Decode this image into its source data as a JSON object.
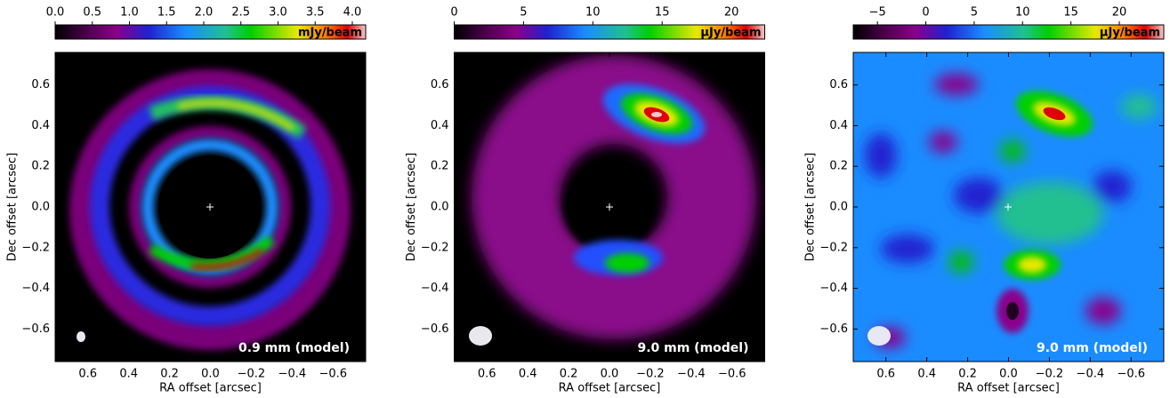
{
  "chart_data": [
    {
      "type": "image",
      "xlabel": "RA offset [arcsec]",
      "ylabel": "Dec offset [arcsec]",
      "annotation": "0.9 mm (model)",
      "xlim": [
        0.76,
        -0.76
      ],
      "ylim": [
        -0.76,
        0.76
      ],
      "xticks": [
        0.6,
        0.4,
        0.2,
        {
          "value": 0,
          "label": "0.0"
        },
        {
          "value": -0.2,
          "label": "−0.2"
        },
        {
          "value": -0.4,
          "label": "−0.4"
        },
        {
          "value": -0.6,
          "label": "−0.6"
        }
      ],
      "yticks": [
        {
          "value": -0.6,
          "label": "−0.6"
        },
        {
          "value": -0.4,
          "label": "−0.4"
        },
        {
          "value": -0.2,
          "label": "−0.2"
        },
        {
          "value": 0,
          "label": "0.0"
        },
        0.2,
        0.4,
        0.6
      ],
      "colorbar": {
        "label": "mJy/beam",
        "clim": [
          0,
          4.18
        ],
        "ticks": [
          {
            "value": 0,
            "label": "0.0"
          },
          0.5,
          {
            "value": 1,
            "label": "1.0"
          },
          1.5,
          {
            "value": 2,
            "label": "2.0"
          },
          2.5,
          {
            "value": 3,
            "label": "3.0"
          },
          3.5,
          {
            "value": 4,
            "label": "4.0"
          }
        ]
      }
    },
    {
      "type": "image",
      "xlabel": "RA offset [arcsec]",
      "ylabel": "Dec offset [arcsec]",
      "annotation": "9.0 mm (model)",
      "xlim": [
        0.76,
        -0.76
      ],
      "ylim": [
        -0.76,
        0.76
      ],
      "xticks": [
        0.6,
        0.4,
        0.2,
        {
          "value": 0,
          "label": "0.0"
        },
        {
          "value": -0.2,
          "label": "−0.2"
        },
        {
          "value": -0.4,
          "label": "−0.4"
        },
        {
          "value": -0.6,
          "label": "−0.6"
        }
      ],
      "yticks": [
        {
          "value": -0.6,
          "label": "−0.6"
        },
        {
          "value": -0.4,
          "label": "−0.4"
        },
        {
          "value": -0.2,
          "label": "−0.2"
        },
        {
          "value": 0,
          "label": "0.0"
        },
        0.2,
        0.4,
        0.6
      ],
      "colorbar": {
        "label": "μJy/beam",
        "clim": [
          0,
          22.4
        ],
        "ticks": [
          0,
          5,
          10,
          15,
          20
        ]
      }
    },
    {
      "type": "image",
      "xlabel": "RA offset [arcsec]",
      "ylabel": "Dec offset [arcsec]",
      "annotation": "9.0 mm (model)",
      "xlim": [
        0.76,
        -0.76
      ],
      "ylim": [
        -0.76,
        0.76
      ],
      "xticks": [
        0.6,
        0.4,
        0.2,
        {
          "value": 0,
          "label": "0.0"
        },
        {
          "value": -0.2,
          "label": "−0.2"
        },
        {
          "value": -0.4,
          "label": "−0.4"
        },
        {
          "value": -0.6,
          "label": "−0.6"
        }
      ],
      "yticks": [
        {
          "value": -0.6,
          "label": "−0.6"
        },
        {
          "value": -0.4,
          "label": "−0.4"
        },
        {
          "value": -0.2,
          "label": "−0.2"
        },
        {
          "value": 0,
          "label": "0.0"
        },
        0.2,
        0.4,
        0.6
      ],
      "colorbar": {
        "label": "μJy/beam",
        "clim": [
          -7.5,
          24.6
        ],
        "ticks": [
          {
            "value": -5,
            "label": "−5"
          },
          0,
          5,
          10,
          15,
          20
        ]
      }
    }
  ]
}
